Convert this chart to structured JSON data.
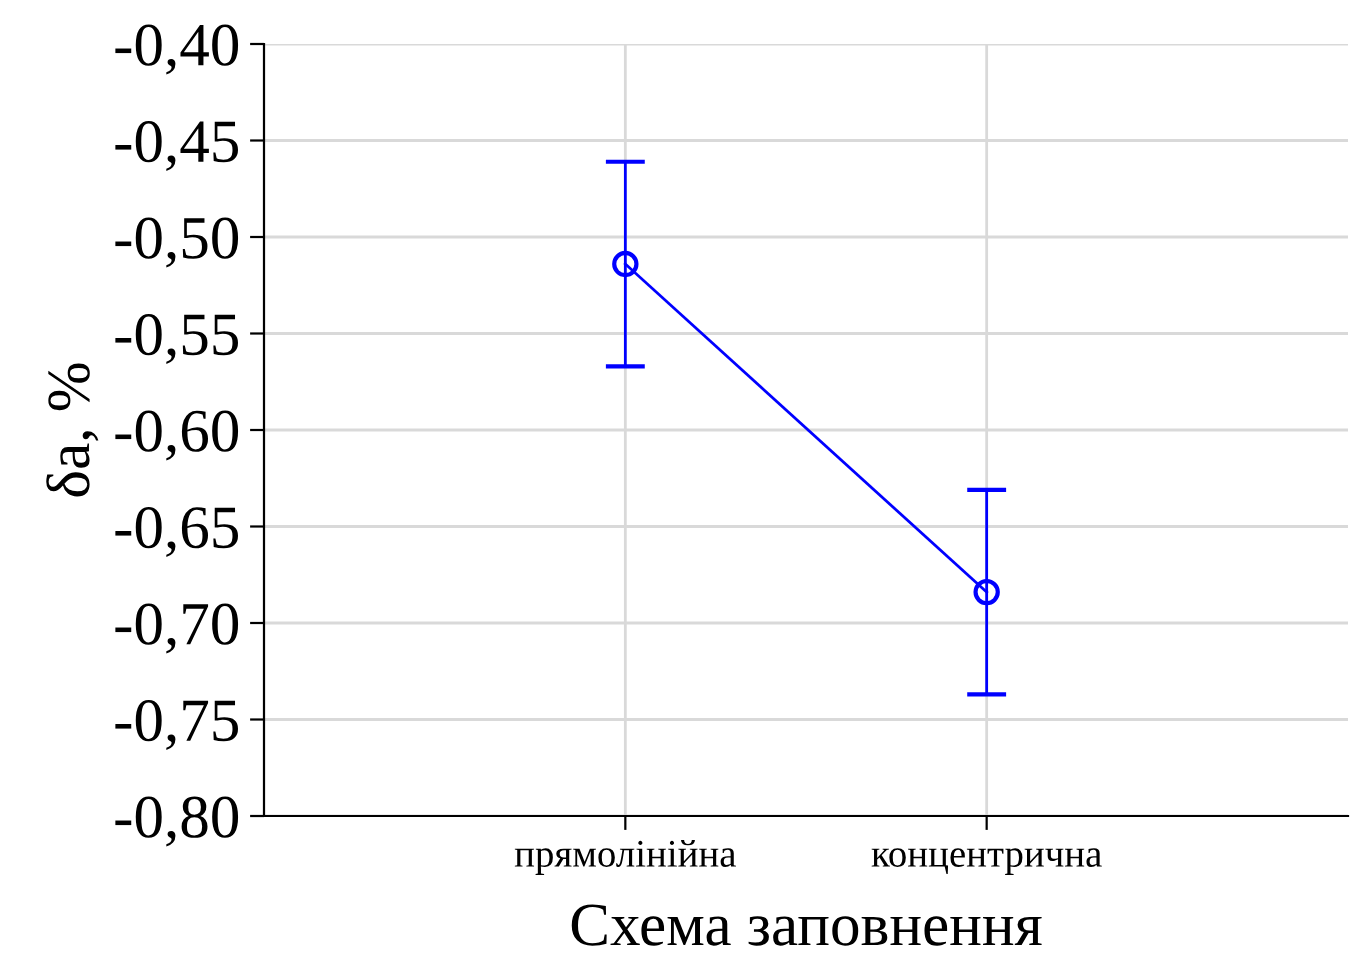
{
  "chart_data": {
    "type": "line",
    "xlabel": "Схема заповнення",
    "ylabel": "δa, %",
    "categories": [
      "прямолінійна",
      "концентрична"
    ],
    "series": [
      {
        "color": "#0000ff",
        "values": [
          -0.514,
          -0.684
        ],
        "errors": [
          0.053,
          0.053
        ]
      }
    ],
    "ylim": [
      -0.8,
      -0.4
    ],
    "yticks": [
      {
        "value": -0.8,
        "label": "-0,80"
      },
      {
        "value": -0.75,
        "label": "-0,75"
      },
      {
        "value": -0.7,
        "label": "-0,70"
      },
      {
        "value": -0.65,
        "label": "-0,65"
      },
      {
        "value": -0.6,
        "label": "-0,60"
      },
      {
        "value": -0.55,
        "label": "-0,55"
      },
      {
        "value": -0.5,
        "label": "-0,50"
      },
      {
        "value": -0.45,
        "label": "-0,45"
      },
      {
        "value": -0.4,
        "label": "-0,40"
      }
    ],
    "grid": true,
    "marker": "circle",
    "line_style": "solid"
  }
}
